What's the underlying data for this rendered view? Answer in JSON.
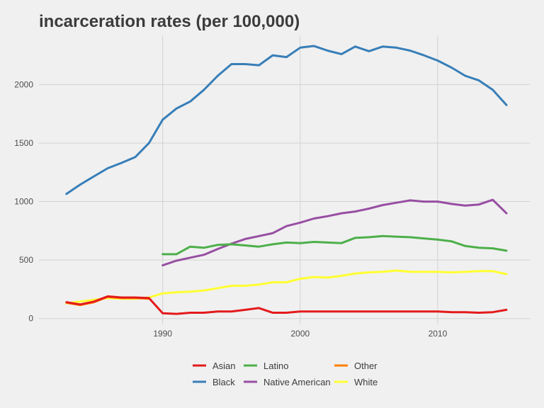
{
  "chart_data": {
    "type": "line",
    "title": "incarceration rates (per 100,000)",
    "xlabel": "",
    "ylabel": "",
    "xlim": [
      1981,
      2016.7
    ],
    "ylim": [
      -50,
      2420
    ],
    "x_ticks": [
      1990,
      2000,
      2010
    ],
    "y_ticks": [
      0,
      500,
      1000,
      1500,
      2000
    ],
    "grid": true,
    "legend_position": "bottom",
    "series": [
      {
        "name": "Black",
        "color": "#377eb8",
        "x": [
          1983,
          1984,
          1985,
          1986,
          1987,
          1988,
          1989,
          1990,
          1991,
          1992,
          1993,
          1994,
          1995,
          1996,
          1997,
          1998,
          1999,
          2000,
          2001,
          2002,
          2003,
          2004,
          2005,
          2006,
          2007,
          2008,
          2009,
          2010,
          2011,
          2012,
          2013,
          2014,
          2015
        ],
        "y": [
          1065,
          1145,
          1215,
          1285,
          1330,
          1380,
          1500,
          1700,
          1795,
          1855,
          1955,
          2075,
          2175,
          2175,
          2165,
          2250,
          2235,
          2315,
          2330,
          2290,
          2260,
          2325,
          2285,
          2325,
          2315,
          2290,
          2250,
          2205,
          2145,
          2075,
          2035,
          1955,
          1825
        ]
      },
      {
        "name": "Native American",
        "color": "#984ea3",
        "x": [
          1990,
          1991,
          1992,
          1993,
          1994,
          1995,
          1996,
          1997,
          1998,
          1999,
          2000,
          2001,
          2002,
          2003,
          2004,
          2005,
          2006,
          2007,
          2008,
          2009,
          2010,
          2011,
          2012,
          2013,
          2014,
          2015
        ],
        "y": [
          455,
          495,
          520,
          545,
          595,
          640,
          680,
          705,
          730,
          790,
          820,
          855,
          875,
          900,
          915,
          940,
          970,
          990,
          1010,
          1000,
          1000,
          980,
          965,
          975,
          1015,
          900
        ]
      },
      {
        "name": "Latino",
        "color": "#4daf4a",
        "x": [
          1990,
          1991,
          1992,
          1993,
          1994,
          1995,
          1996,
          1997,
          1998,
          1999,
          2000,
          2001,
          2002,
          2003,
          2004,
          2005,
          2006,
          2007,
          2008,
          2009,
          2010,
          2011,
          2012,
          2013,
          2014,
          2015
        ],
        "y": [
          550,
          550,
          615,
          605,
          630,
          635,
          625,
          615,
          635,
          650,
          645,
          655,
          650,
          645,
          690,
          695,
          705,
          700,
          695,
          685,
          675,
          660,
          620,
          605,
          600,
          580
        ]
      },
      {
        "name": "White",
        "color": "#ffff33",
        "x": [
          1983,
          1984,
          1985,
          1986,
          1987,
          1988,
          1989,
          1990,
          1991,
          1992,
          1993,
          1994,
          1995,
          1996,
          1997,
          1998,
          1999,
          2000,
          2001,
          2002,
          2003,
          2004,
          2005,
          2006,
          2007,
          2008,
          2009,
          2010,
          2011,
          2012,
          2013,
          2014,
          2015
        ],
        "y": [
          130,
          145,
          160,
          175,
          170,
          170,
          180,
          215,
          225,
          230,
          240,
          260,
          280,
          280,
          290,
          310,
          310,
          340,
          355,
          350,
          365,
          385,
          395,
          400,
          410,
          400,
          400,
          400,
          395,
          400,
          405,
          405,
          380
        ]
      },
      {
        "name": "Other",
        "color": "#ff7f00",
        "x": [
          1983,
          1984,
          1985,
          1986,
          1987,
          1988,
          1989
        ],
        "y": [
          135,
          115,
          140,
          185,
          175,
          175,
          170
        ]
      },
      {
        "name": "Asian",
        "color": "#e41a1c",
        "x": [
          1983,
          1984,
          1985,
          1986,
          1987,
          1988,
          1989,
          1990,
          1991,
          1992,
          1993,
          1994,
          1995,
          1996,
          1997,
          1998,
          1999,
          2000,
          2001,
          2002,
          2003,
          2004,
          2005,
          2006,
          2007,
          2008,
          2009,
          2010,
          2011,
          2012,
          2013,
          2014,
          2015
        ],
        "y": [
          140,
          120,
          145,
          190,
          180,
          180,
          175,
          45,
          40,
          50,
          50,
          60,
          60,
          75,
          90,
          50,
          50,
          60,
          60,
          60,
          60,
          60,
          60,
          60,
          60,
          60,
          60,
          60,
          55,
          55,
          50,
          55,
          75
        ]
      }
    ],
    "legend": [
      {
        "name": "Asian",
        "color": "#e41a1c"
      },
      {
        "name": "Latino",
        "color": "#4daf4a"
      },
      {
        "name": "Other",
        "color": "#ff7f00"
      },
      {
        "name": "Black",
        "color": "#377eb8"
      },
      {
        "name": "Native American",
        "color": "#984ea3"
      },
      {
        "name": "White",
        "color": "#ffff33"
      }
    ]
  }
}
